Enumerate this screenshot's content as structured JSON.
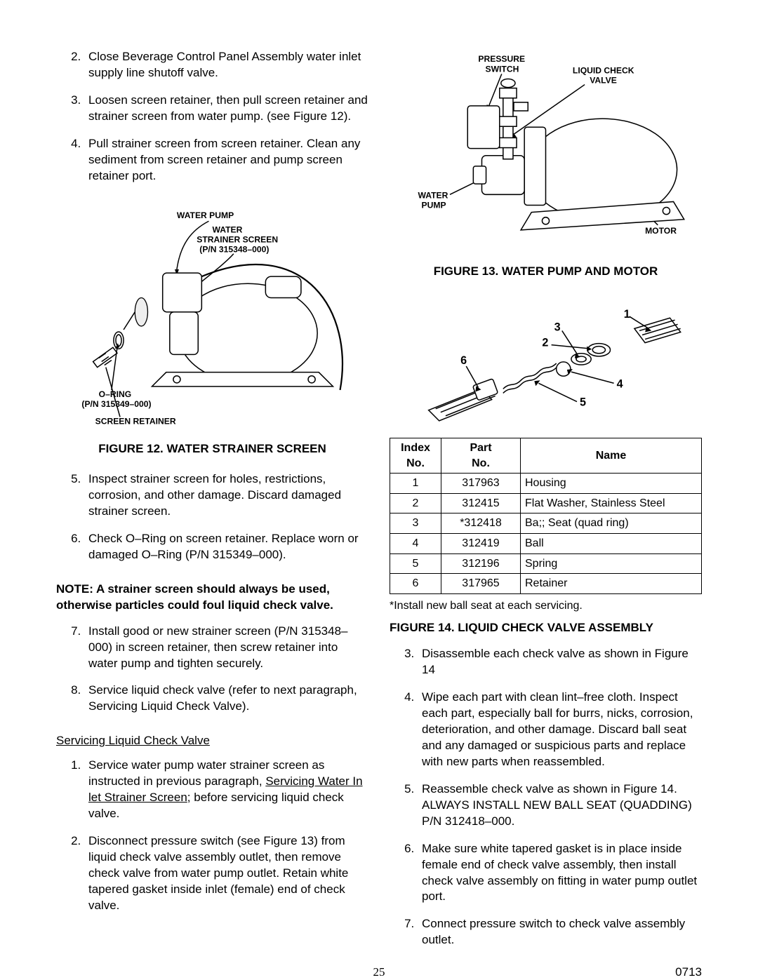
{
  "left": {
    "stepsA": [
      {
        "n": 2,
        "text": "Close Beverage Control Panel Assembly water inlet supply line shutoff valve."
      },
      {
        "n": 3,
        "text": "Loosen screen retainer, then pull screen retainer and strainer screen from water pump. (see Figure 12)."
      },
      {
        "n": 4,
        "text": "Pull strainer screen from screen retainer. Clean any sediment from screen retainer and pump screen retainer port."
      }
    ],
    "fig12": {
      "caption": "FIGURE 12. WATER STRAINER SCREEN",
      "labels": {
        "water_pump": "WATER PUMP",
        "strainer1": "WATER",
        "strainer2": "STRAINER SCREEN",
        "strainer3": "(P/N 315348–000)",
        "oring1": "O–RING",
        "oring2": "(P/N 315349–000)",
        "retainer": "SCREEN RETAINER"
      }
    },
    "stepsB": [
      {
        "n": 5,
        "text": "Inspect strainer screen for holes, restrictions, corrosion, and other damage. Discard damaged strainer screen."
      },
      {
        "n": 6,
        "text": "Check O–Ring on screen retainer. Replace worn or damaged O–Ring (P/N 315349–000)."
      }
    ],
    "note": "NOTE: A strainer screen should always be used, otherwise particles could foul liquid check valve.",
    "stepsC": [
      {
        "n": 7,
        "text": "Install good or new strainer screen (P/N 315348–000) in screen retainer, then screw retainer into water pump and tighten securely."
      },
      {
        "n": 8,
        "text": "Service liquid check valve (refer to next paragraph, Servicing Liquid Check Valve)."
      }
    ],
    "subhead": "Servicing Liquid Check Valve",
    "stepsD": [
      {
        "n": 1,
        "pre": "Service water pump water strainer screen as instructed in previous paragraph, ",
        "u": "Servicing Water In let Strainer Screen",
        "post": "; before servicing liquid check valve."
      },
      {
        "n": 2,
        "text": "Disconnect pressure switch (see Figure 13) from liquid check valve assembly outlet, then remove check valve from water pump outlet. Retain white tapered gasket inside inlet (female) end of check valve."
      }
    ]
  },
  "right": {
    "fig13": {
      "caption": "FIGURE 13. WATER PUMP AND MOTOR",
      "labels": {
        "pressure1": "PRESSURE",
        "pressure2": "SWITCH",
        "lcv1": "LIQUID CHECK",
        "lcv2": "VALVE",
        "wp1": "WATER",
        "wp2": "PUMP",
        "motor": "MOTOR"
      }
    },
    "fig14": {
      "caption": "FIGURE 14. LIQUID CHECK VALVE ASSEMBLY",
      "numbers": [
        "1",
        "2",
        "3",
        "4",
        "5",
        "6"
      ]
    },
    "table": {
      "head": {
        "index": "Index No.",
        "part": "Part No.",
        "name": "Name"
      },
      "rows": [
        {
          "i": "1",
          "p": "317963",
          "n": "Housing"
        },
        {
          "i": "2",
          "p": "312415",
          "n": "Flat Washer, Stainless Steel"
        },
        {
          "i": "3",
          "p": "*312418",
          "n": "Ba;; Seat (quad ring)"
        },
        {
          "i": "4",
          "p": "312419",
          "n": "Ball"
        },
        {
          "i": "5",
          "p": "312196",
          "n": "Spring"
        },
        {
          "i": "6",
          "p": "317965",
          "n": "Retainer"
        }
      ],
      "note": "*Install new ball seat at each servicing."
    },
    "stepsE": [
      {
        "n": 3,
        "text": "Disassemble each check valve as shown in Figure 14"
      },
      {
        "n": 4,
        "text": "Wipe each part with clean lint–free cloth. Inspect each part, especially ball for burrs, nicks, corrosion, deterioration, and other damage. Discard ball seat and any damaged or suspicious parts and replace with new parts when reassembled."
      },
      {
        "n": 5,
        "text": "Reassemble check valve as shown in Figure 14. ALWAYS INSTALL NEW BALL SEAT (QUADDING) P/N 312418–000."
      },
      {
        "n": 6,
        "text": "Make sure white tapered gasket is in place inside female end of check valve assembly, then install check valve assembly on fitting in water pump outlet port."
      },
      {
        "n": 7,
        "text": "Connect pressure switch to check valve assembly outlet."
      }
    ]
  },
  "footer": {
    "page": "25",
    "rev": "0713"
  }
}
